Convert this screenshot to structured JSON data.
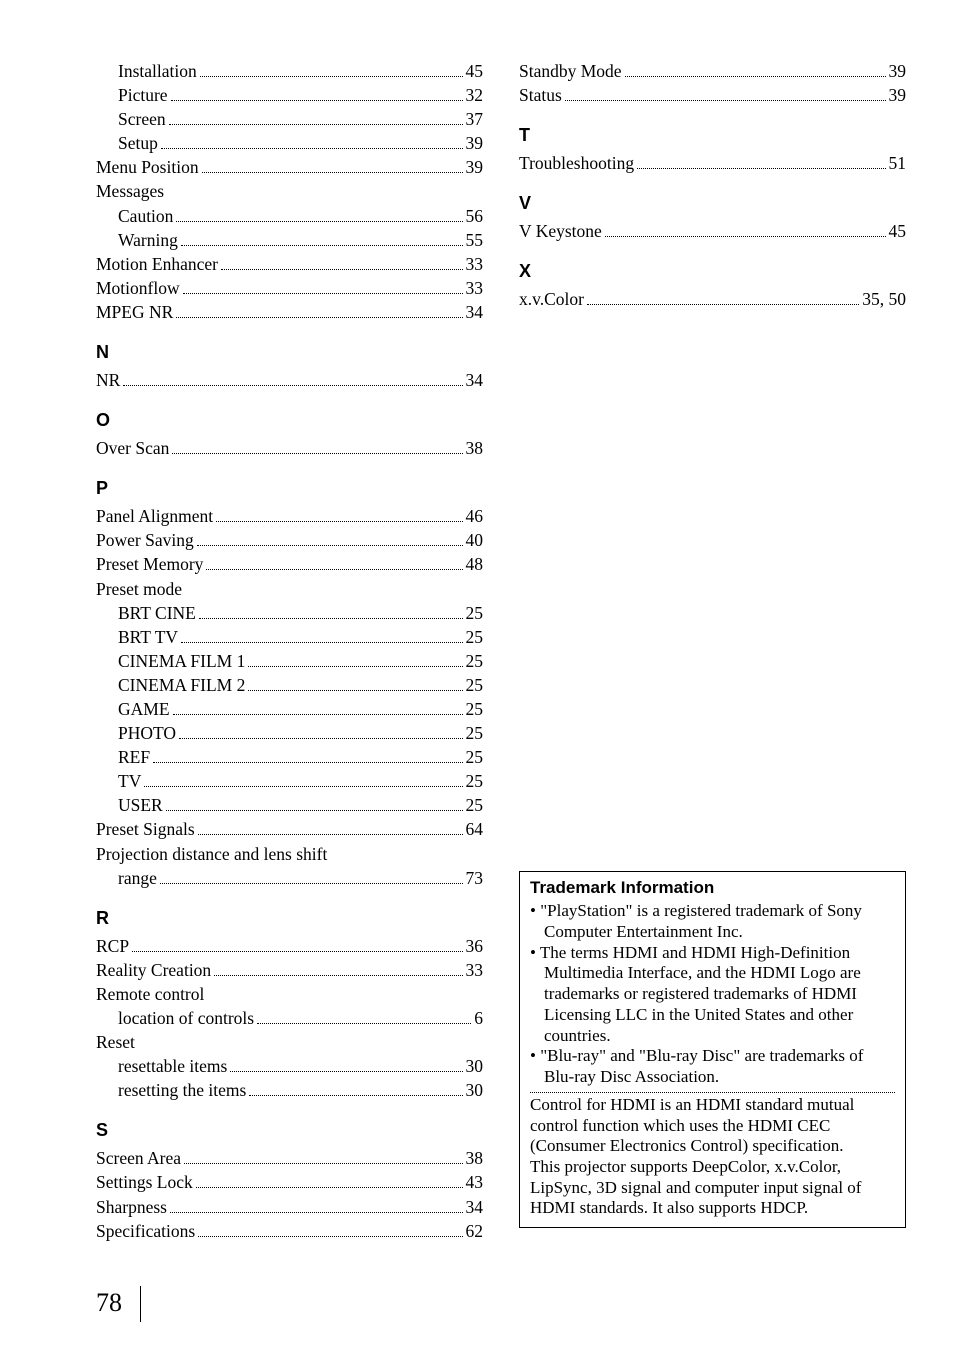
{
  "page_number": "78",
  "left_column": [
    {
      "type": "entry",
      "label": "Installation",
      "page": "45",
      "indent": true
    },
    {
      "type": "entry",
      "label": "Picture",
      "page": "32",
      "indent": true
    },
    {
      "type": "entry",
      "label": "Screen",
      "page": "37",
      "indent": true
    },
    {
      "type": "entry",
      "label": "Setup",
      "page": "39",
      "indent": true
    },
    {
      "type": "entry",
      "label": "Menu Position",
      "page": "39"
    },
    {
      "type": "group",
      "label": "Messages"
    },
    {
      "type": "entry",
      "label": "Caution",
      "page": "56",
      "indent": true
    },
    {
      "type": "entry",
      "label": "Warning",
      "page": "55",
      "indent": true
    },
    {
      "type": "entry",
      "label": "Motion Enhancer",
      "page": "33"
    },
    {
      "type": "entry",
      "label": "Motionflow",
      "page": "33"
    },
    {
      "type": "entry",
      "label": "MPEG NR",
      "page": "34"
    },
    {
      "type": "heading",
      "label": "N"
    },
    {
      "type": "entry",
      "label": "NR",
      "page": "34"
    },
    {
      "type": "heading",
      "label": "O"
    },
    {
      "type": "entry",
      "label": "Over Scan",
      "page": "38"
    },
    {
      "type": "heading",
      "label": "P"
    },
    {
      "type": "entry",
      "label": "Panel Alignment",
      "page": "46"
    },
    {
      "type": "entry",
      "label": "Power Saving",
      "page": "40"
    },
    {
      "type": "entry",
      "label": "Preset Memory",
      "page": "48"
    },
    {
      "type": "group",
      "label": "Preset mode"
    },
    {
      "type": "entry",
      "label": "BRT CINE",
      "page": "25",
      "indent": true
    },
    {
      "type": "entry",
      "label": "BRT TV",
      "page": "25",
      "indent": true
    },
    {
      "type": "entry",
      "label": "CINEMA FILM 1",
      "page": "25",
      "indent": true
    },
    {
      "type": "entry",
      "label": "CINEMA FILM 2",
      "page": "25",
      "indent": true
    },
    {
      "type": "entry",
      "label": "GAME",
      "page": "25",
      "indent": true
    },
    {
      "type": "entry",
      "label": "PHOTO",
      "page": "25",
      "indent": true
    },
    {
      "type": "entry",
      "label": "REF",
      "page": "25",
      "indent": true
    },
    {
      "type": "entry",
      "label": "TV",
      "page": "25",
      "indent": true
    },
    {
      "type": "entry",
      "label": "USER",
      "page": "25",
      "indent": true
    },
    {
      "type": "entry",
      "label": "Preset Signals",
      "page": "64"
    },
    {
      "type": "group",
      "label": "Projection distance and lens shift"
    },
    {
      "type": "entry",
      "label": "range",
      "page": "73",
      "indent": true
    },
    {
      "type": "heading",
      "label": "R"
    },
    {
      "type": "entry",
      "label": "RCP",
      "page": "36"
    },
    {
      "type": "entry",
      "label": "Reality Creation",
      "page": "33"
    },
    {
      "type": "group",
      "label": "Remote control"
    },
    {
      "type": "entry",
      "label": "location of controls",
      "page": "6",
      "indent": true
    },
    {
      "type": "group",
      "label": "Reset"
    },
    {
      "type": "entry",
      "label": "resettable items",
      "page": "30",
      "indent": true
    },
    {
      "type": "entry",
      "label": "resetting the items",
      "page": "30",
      "indent": true
    },
    {
      "type": "heading",
      "label": "S"
    },
    {
      "type": "entry",
      "label": "Screen Area",
      "page": "38"
    },
    {
      "type": "entry",
      "label": "Settings Lock",
      "page": "43"
    },
    {
      "type": "entry",
      "label": "Sharpness",
      "page": "34"
    },
    {
      "type": "entry",
      "label": "Specifications",
      "page": "62"
    }
  ],
  "right_column": [
    {
      "type": "entry",
      "label": "Standby Mode",
      "page": "39"
    },
    {
      "type": "entry",
      "label": "Status",
      "page": "39"
    },
    {
      "type": "heading",
      "label": "T"
    },
    {
      "type": "entry",
      "label": "Troubleshooting",
      "page": "51"
    },
    {
      "type": "heading",
      "label": "V"
    },
    {
      "type": "entry",
      "label": "V Keystone",
      "page": "45"
    },
    {
      "type": "heading",
      "label": "X"
    },
    {
      "type": "entry",
      "label": "x.v.Color",
      "page": "35, 50"
    }
  ],
  "trademark": {
    "title": "Trademark Information",
    "bullets": [
      "\"PlayStation\" is a registered trademark of Sony Computer Entertainment Inc.",
      "The terms HDMI and HDMI High-Definition Multimedia Interface, and the HDMI Logo are trademarks or registered trademarks of HDMI Licensing LLC in the United States and other countries.",
      "\"Blu-ray\" and \"Blu-ray Disc\" are trademarks of Blu-ray Disc Association."
    ],
    "paragraph1": "Control for HDMI is an HDMI standard mutual control function which uses the HDMI CEC (Consumer Electronics Control) specification.",
    "paragraph2": "This projector supports DeepColor, x.v.Color, LipSync, 3D signal and computer input signal of HDMI standards. It also supports HDCP."
  }
}
